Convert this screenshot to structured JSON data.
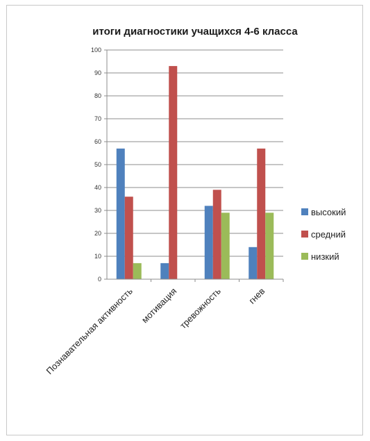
{
  "chart_data": {
    "type": "bar",
    "title": "итоги диагностики учащихся 4-6 класса",
    "categories": [
      "Познавательная активность",
      "мотивация",
      "тревожность",
      "гнев"
    ],
    "series": [
      {
        "name": "высокий",
        "color": "#4f81bd",
        "values": [
          57,
          7,
          32,
          14
        ]
      },
      {
        "name": "средний",
        "color": "#c0504d",
        "values": [
          36,
          93,
          39,
          57
        ]
      },
      {
        "name": "низкий",
        "color": "#9bbb59",
        "values": [
          7,
          0,
          29,
          29
        ]
      }
    ],
    "ylim": [
      0,
      100
    ],
    "yticks": [
      0,
      10,
      20,
      30,
      40,
      50,
      60,
      70,
      80,
      90,
      100
    ],
    "grid": true,
    "legend_position": "right"
  }
}
